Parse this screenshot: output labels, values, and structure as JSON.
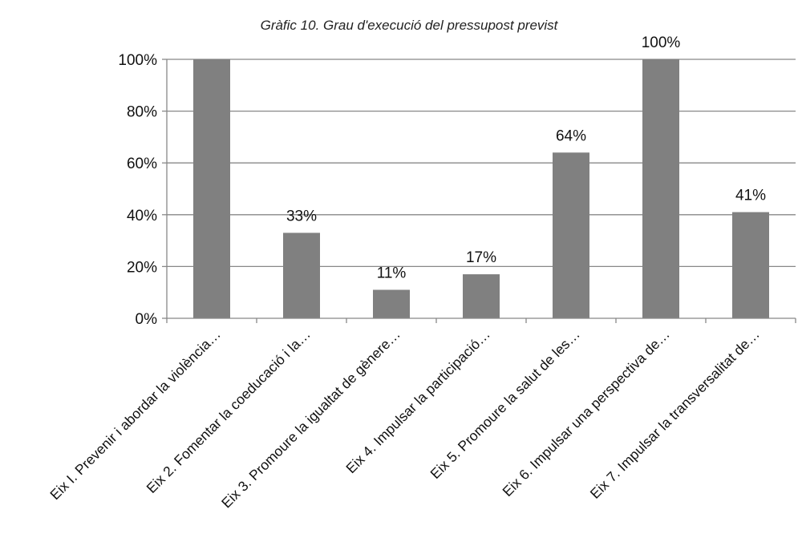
{
  "chart_data": {
    "type": "bar",
    "title": "Gràfic 10. Grau d'execució del pressupost previst",
    "xlabel": "",
    "ylabel": "",
    "categories": [
      "Eix I.  Prevenir i abordar la violència…",
      "Eix 2.  Fomentar la coeducació i la…",
      "Eix 3. Promoure la igualtat de gènere…",
      "Eix 4. Impulsar la participació…",
      "Eix 5.  Promoure la salut de les…",
      "Eix 6.  Impulsar una perspectiva de…",
      "Eix 7. Impulsar la transversalitat de…"
    ],
    "values": [
      100,
      33,
      11,
      17,
      64,
      100,
      41
    ],
    "data_labels": [
      "",
      "33%",
      "11%",
      "17%",
      "64%",
      "100%",
      "41%"
    ],
    "ylim": [
      0,
      100
    ],
    "yticks": [
      0,
      20,
      40,
      60,
      80,
      100
    ],
    "ytick_labels": [
      "0%",
      "20%",
      "40%",
      "60%",
      "80%",
      "100%"
    ],
    "grid": true,
    "legend": "none",
    "bar_color": "#808080",
    "gridline_color": "#888888"
  }
}
